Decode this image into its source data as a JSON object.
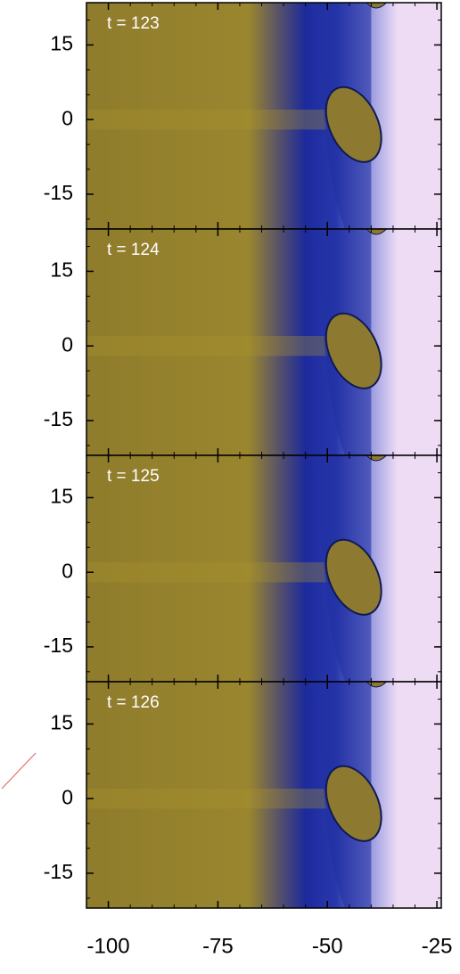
{
  "chart_data": [
    {
      "type": "heatmap",
      "title": "t = 123",
      "xlim": [
        -105,
        -24
      ],
      "ylim": [
        -22,
        23.5
      ],
      "xticks": [
        -100,
        -75,
        -50,
        -25
      ],
      "yticks": [
        15,
        0,
        -15
      ],
      "colormap": [
        "#8f7c2c",
        "#1c2a9c",
        "#eedcf5"
      ]
    },
    {
      "type": "heatmap",
      "title": "t = 124",
      "xlim": [
        -105,
        -24
      ],
      "ylim": [
        -22,
        23.5
      ],
      "xticks": [
        -100,
        -75,
        -50,
        -25
      ],
      "yticks": [
        15,
        0,
        -15
      ],
      "colormap": [
        "#8f7c2c",
        "#1c2a9c",
        "#eedcf5"
      ]
    },
    {
      "type": "heatmap",
      "title": "t = 125",
      "xlim": [
        -105,
        -24
      ],
      "ylim": [
        -22,
        23.5
      ],
      "xticks": [
        -100,
        -75,
        -50,
        -25
      ],
      "yticks": [
        15,
        0,
        -15
      ],
      "colormap": [
        "#8f7c2c",
        "#1c2a9c",
        "#eedcf5"
      ]
    },
    {
      "type": "heatmap",
      "title": "t = 126",
      "xlim": [
        -105,
        -24
      ],
      "ylim": [
        -22,
        23.5
      ],
      "xticks": [
        -100,
        -75,
        -50,
        -25
      ],
      "yticks": [
        15,
        0,
        -15
      ],
      "colormap": [
        "#8f7c2c",
        "#1c2a9c",
        "#eedcf5"
      ]
    }
  ]
}
